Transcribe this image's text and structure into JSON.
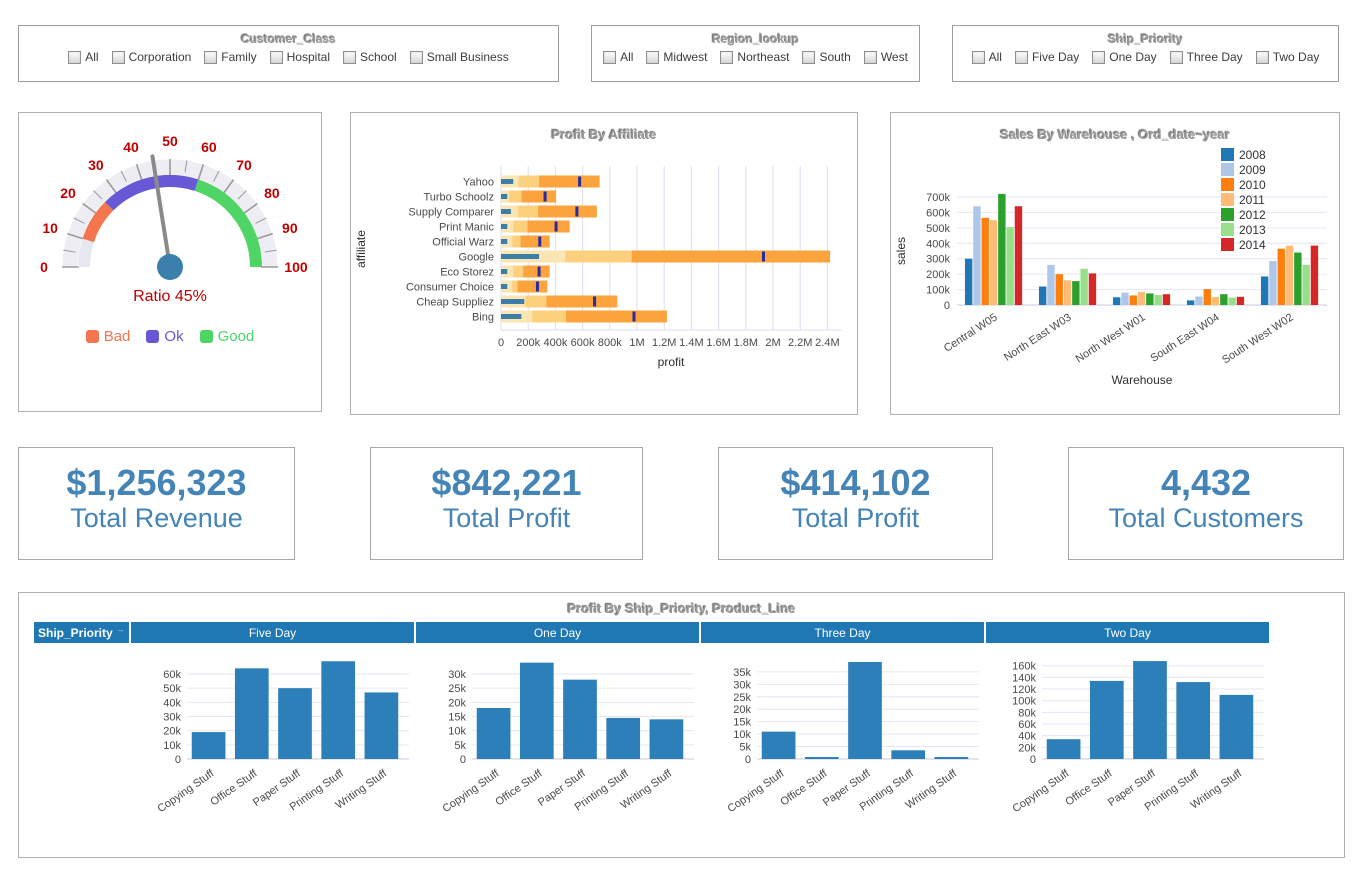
{
  "filters": [
    {
      "title": "Customer_Class",
      "options": [
        "All",
        "Corporation",
        "Family",
        "Hospital",
        "School",
        "Small Business"
      ]
    },
    {
      "title": "Region_lookup",
      "options": [
        "All",
        "Midwest",
        "Northeast",
        "South",
        "West"
      ]
    },
    {
      "title": "Ship_Priority",
      "options": [
        "All",
        "Five Day",
        "One Day",
        "Three Day",
        "Two Day"
      ]
    }
  ],
  "kpis": [
    {
      "value": "$1,256,323",
      "label": "Total Revenue"
    },
    {
      "value": "$842,221",
      "label": "Total Profit"
    },
    {
      "value": "$414,102",
      "label": "Total Profit"
    },
    {
      "value": "4,432",
      "label": "Total Customers"
    }
  ],
  "chart_data": [
    {
      "type": "gauge",
      "title": "Ratio 45%",
      "value": 45,
      "min": 0,
      "max": 100,
      "tick_step": 10,
      "base_color": "#e7e7ef",
      "bands": [
        {
          "label": "Bad",
          "from": 10,
          "to": 25,
          "color": "#f4764e"
        },
        {
          "label": "Ok",
          "from": 25,
          "to": 60,
          "color": "#6759d6"
        },
        {
          "label": "Good",
          "from": 60,
          "to": 100,
          "color": "#4fd466"
        }
      ],
      "needle_color": "#8a8a8a",
      "pivot_color": "#3b7fad",
      "number_color": "#c00000",
      "legend": [
        {
          "label": "Bad",
          "color": "#f4764e"
        },
        {
          "label": "Ok",
          "color": "#6759d6"
        },
        {
          "label": "Good",
          "color": "#4fd466"
        }
      ]
    },
    {
      "type": "bullet",
      "title": "Profit By Affiliate",
      "xlabel": "profit",
      "ylabel": "affiliate",
      "xlim": [
        0,
        2500000
      ],
      "xticks": [
        0,
        200000,
        400000,
        600000,
        800000,
        1000000,
        1200000,
        1400000,
        1600000,
        1800000,
        2000000,
        2200000,
        2400000
      ],
      "colors": {
        "measure": "#3d7ea6",
        "ranges": [
          "#fbe5b3",
          "#fdd07e",
          "#fba33c"
        ],
        "target": "#2b2ba0"
      },
      "rows": [
        {
          "name": "Yahoo",
          "measure": 90000,
          "ranges": [
            130000,
            280000,
            725000
          ],
          "target": 578000
        },
        {
          "name": "Turbo Schoolz",
          "measure": 46000,
          "ranges": [
            60000,
            151000,
            405000
          ],
          "target": 324000
        },
        {
          "name": "Supply Comparer",
          "measure": 73000,
          "ranges": [
            127000,
            273000,
            705000
          ],
          "target": 558000
        },
        {
          "name": "Print Manic",
          "measure": 46000,
          "ranges": [
            90000,
            195000,
            505000
          ],
          "target": 405000
        },
        {
          "name": "Official Warz",
          "measure": 46000,
          "ranges": [
            83000,
            144000,
            358000
          ],
          "target": 285000
        },
        {
          "name": "Google",
          "measure": 280000,
          "ranges": [
            473000,
            961000,
            2420000
          ],
          "target": 1930000
        },
        {
          "name": "Eco Storez",
          "measure": 46000,
          "ranges": [
            90000,
            163000,
            358000
          ],
          "target": 280000
        },
        {
          "name": "Consumer Choice",
          "measure": 46000,
          "ranges": [
            83000,
            122000,
            341000
          ],
          "target": 268000
        },
        {
          "name": "Cheap Suppliez",
          "measure": 171000,
          "ranges": [
            180000,
            334000,
            855000
          ],
          "target": 688000
        },
        {
          "name": "Bing",
          "measure": 150000,
          "ranges": [
            230000,
            478000,
            1220000
          ],
          "target": 978000
        }
      ]
    },
    {
      "type": "bar",
      "title": "Sales By Warehouse , Ord_date~year",
      "xlabel": "Warehouse",
      "ylabel": "sales",
      "ylim": [
        0,
        750000
      ],
      "ytick_step": 100000,
      "ytick_max": 700000,
      "legend_position": "top-right",
      "categories": [
        "Central W05",
        "North East W03",
        "North West W01",
        "South East W04",
        "South West W02"
      ],
      "series": [
        {
          "name": "2008",
          "color": "#1f77b4",
          "values": [
            300000,
            120000,
            50000,
            30000,
            185000
          ]
        },
        {
          "name": "2009",
          "color": "#aec7e8",
          "values": [
            640000,
            260000,
            80000,
            55000,
            285000
          ]
        },
        {
          "name": "2010",
          "color": "#ff7f0e",
          "values": [
            565000,
            200000,
            62000,
            103000,
            365000
          ]
        },
        {
          "name": "2011",
          "color": "#ffbb78",
          "values": [
            550000,
            160000,
            85000,
            52000,
            385000
          ]
        },
        {
          "name": "2012",
          "color": "#2ca02c",
          "values": [
            720000,
            155000,
            75000,
            70000,
            340000
          ]
        },
        {
          "name": "2013",
          "color": "#98df8a",
          "values": [
            505000,
            235000,
            65000,
            48000,
            260000
          ]
        },
        {
          "name": "2014",
          "color": "#d62728",
          "values": [
            640000,
            205000,
            70000,
            53000,
            385000
          ]
        }
      ]
    },
    {
      "type": "bar-multiples",
      "title": "Profit By Ship_Priority, Product_Line",
      "corner_header": "Ship_Priority",
      "corner_arrow": "→",
      "bar_color": "#2d7fb9",
      "categories": [
        "Copying Stuff",
        "Office Stuff",
        "Paper Stuff",
        "Printing Stuff",
        "Writing Stuff"
      ],
      "panels": [
        {
          "name": "Five Day",
          "ymax": 72000,
          "ytick_max": 60000,
          "ytick_step": 10000,
          "values": [
            19000,
            64000,
            50000,
            69000,
            47000
          ]
        },
        {
          "name": "One Day",
          "ymax": 36000,
          "ytick_max": 30000,
          "ytick_step": 5000,
          "values": [
            18000,
            34000,
            28000,
            14500,
            14000
          ]
        },
        {
          "name": "Three Day",
          "ymax": 41000,
          "ytick_max": 35000,
          "ytick_step": 5000,
          "values": [
            11000,
            800,
            39000,
            3500,
            800
          ]
        },
        {
          "name": "Two Day",
          "ymax": 175000,
          "ytick_max": 160000,
          "ytick_step": 20000,
          "values": [
            34000,
            134000,
            168000,
            132000,
            110000
          ]
        }
      ]
    }
  ]
}
